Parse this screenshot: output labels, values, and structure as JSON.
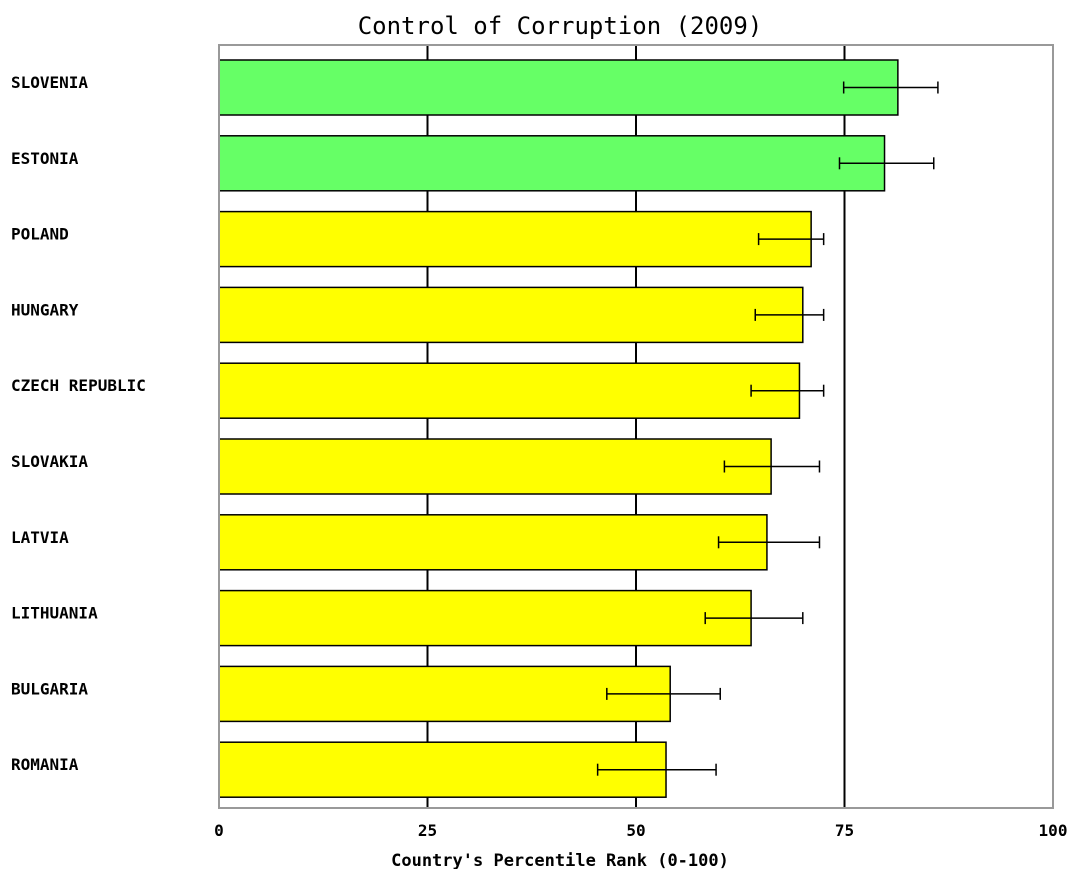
{
  "chart_data": {
    "type": "bar",
    "orientation": "horizontal",
    "title": "Control of Corruption (2009)",
    "xlabel": "Country's Percentile Rank (0-100)",
    "ylabel": "",
    "xlim": [
      0,
      100
    ],
    "xticks": [
      "0",
      "25",
      "50",
      "75",
      "100"
    ],
    "xtick_values": [
      0,
      25,
      50,
      75,
      100
    ],
    "grid": true,
    "reference_line": 75,
    "categories": [
      "SLOVENIA",
      "ESTONIA",
      "POLAND",
      "HUNGARY",
      "CZECH REPUBLIC",
      "SLOVAKIA",
      "LATVIA",
      "LITHUANIA",
      "BULGARIA",
      "ROMANIA"
    ],
    "values": [
      81.4,
      79.8,
      71.0,
      70.0,
      69.6,
      66.2,
      65.7,
      63.8,
      54.1,
      53.6
    ],
    "error_low": [
      74.9,
      74.4,
      64.7,
      64.3,
      63.8,
      60.6,
      59.9,
      58.3,
      46.5,
      45.4
    ],
    "error_high": [
      86.2,
      85.7,
      72.5,
      72.5,
      72.5,
      72.0,
      72.0,
      70.0,
      60.1,
      59.6
    ],
    "bar_colors": [
      "#66ff66",
      "#66ff66",
      "#ffff00",
      "#ffff00",
      "#ffff00",
      "#ffff00",
      "#ffff00",
      "#ffff00",
      "#ffff00",
      "#ffff00"
    ]
  }
}
